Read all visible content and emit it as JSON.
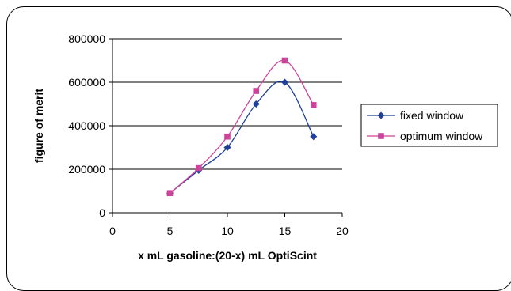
{
  "chart_data": {
    "type": "line",
    "title": "",
    "xlabel": "x mL gasoline:(20-x) mL OptiScint",
    "ylabel": "figure of merit",
    "xlim": [
      0,
      20
    ],
    "ylim": [
      0,
      800000
    ],
    "x_ticks": [
      0,
      5,
      10,
      15,
      20
    ],
    "y_ticks": [
      0,
      200000,
      400000,
      600000,
      800000
    ],
    "x_tick_labels": [
      "0",
      "5",
      "10",
      "15",
      "20"
    ],
    "y_tick_labels": [
      "0",
      "200000",
      "400000",
      "600000",
      "800000"
    ],
    "grid": "horizontal",
    "legend_position": "right",
    "series": [
      {
        "name": "fixed window",
        "marker": "diamond",
        "color": "#1f3f99",
        "x": [
          5,
          7.5,
          10,
          12.5,
          15,
          17.5
        ],
        "y": [
          90000,
          195000,
          300000,
          500000,
          600000,
          350000
        ]
      },
      {
        "name": "optimum window",
        "marker": "square",
        "color": "#cc4499",
        "x": [
          5,
          7.5,
          10,
          12.5,
          15,
          17.5
        ],
        "y": [
          90000,
          205000,
          350000,
          560000,
          700000,
          495000
        ]
      }
    ]
  }
}
